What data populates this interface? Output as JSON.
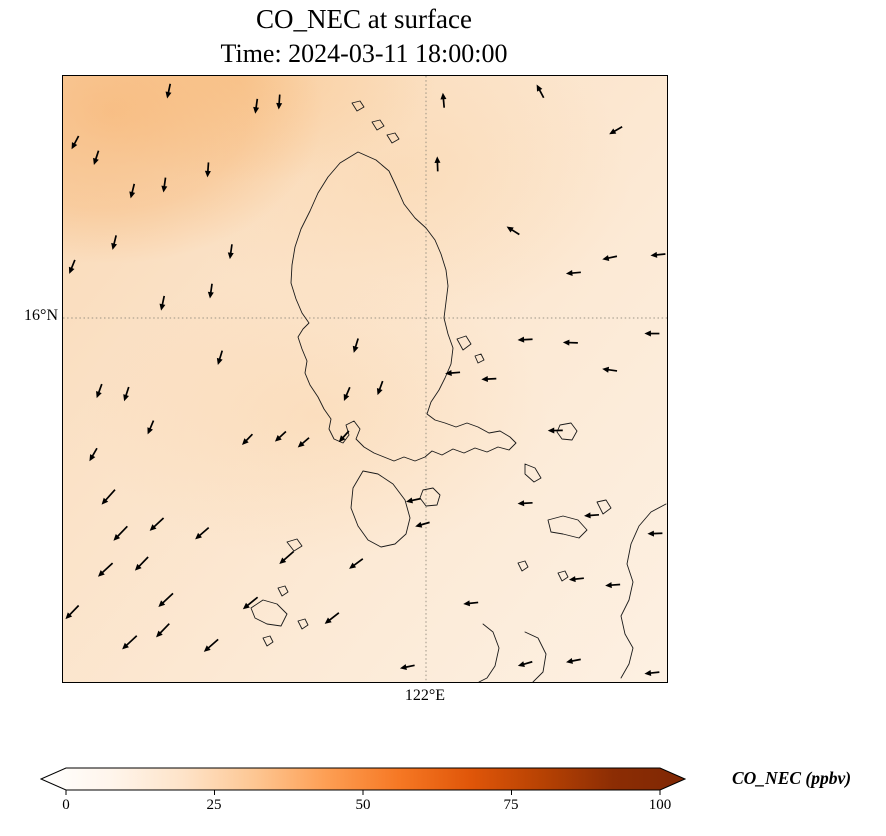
{
  "figure": {
    "title_line1": "CO_NEC at surface",
    "title_line2": "Time: 2024-03-11 18:00:00"
  },
  "map": {
    "lat_tick": "16°N",
    "lon_tick": "122°E"
  },
  "colorbar": {
    "label": "CO_NEC (ppbv)",
    "ticks": [
      "0",
      "25",
      "50",
      "75",
      "100"
    ],
    "gradient": [
      "#ffffff",
      "#fff5eb",
      "#fee3c8",
      "#fdc692",
      "#fd9e53",
      "#f67824",
      "#e05609",
      "#b74203",
      "#8c2d04",
      "#7f2704"
    ]
  },
  "colors": {
    "coastline": "#1a1a1a",
    "gridline": "#8a8578",
    "arrow": "#000000",
    "field_base": "#fbe3cb",
    "field_high_patch": "#f4bb86"
  },
  "chart_data": {
    "type": "heatmap",
    "title": "CO_NEC at surface",
    "subtitle": "Time: 2024-03-11 18:00:00",
    "variable": "CO_NEC",
    "units": "ppbv",
    "level": "surface",
    "time": "2024-03-11 18:00:00",
    "region": "Luzon, Philippines and surrounding seas",
    "colormap": "Oranges",
    "colorbar_range": [
      0,
      100
    ],
    "colorbar_ticks": [
      0,
      25,
      50,
      75,
      100
    ],
    "colorbar_extend": "both",
    "grid_lat_labels": [
      "16°N"
    ],
    "grid_lon_labels": [
      "122°E"
    ],
    "gridline_positions_pct": {
      "lon_x": 60.1,
      "lat_y": 39.9
    },
    "approx_field_range_ppbv": [
      5,
      25
    ],
    "field_note": "pale orange field overall, slightly higher CO in northwest corner, lightest toward southeast",
    "wind_vector_format": "[x_pct, y_pct, angle_deg_ccw_from_east, optional_length_px]",
    "wind_vectors": [
      [
        17.5,
        2.5,
        258
      ],
      [
        32,
        5,
        262
      ],
      [
        35.8,
        4.3,
        266
      ],
      [
        2,
        11,
        242
      ],
      [
        5.5,
        13.5,
        252
      ],
      [
        11.5,
        19,
        256
      ],
      [
        16.8,
        18,
        262
      ],
      [
        24,
        15.5,
        266
      ],
      [
        8.5,
        27.5,
        256
      ],
      [
        1.5,
        31.5,
        248
      ],
      [
        27.8,
        29,
        262
      ],
      [
        16.5,
        37.5,
        258
      ],
      [
        24.5,
        35.5,
        262
      ],
      [
        6,
        52,
        250
      ],
      [
        10.5,
        52.5,
        252
      ],
      [
        14.5,
        58,
        247
      ],
      [
        5,
        62.5,
        240
      ],
      [
        26,
        46.5,
        253
      ],
      [
        63,
        4,
        95
      ],
      [
        79,
        2.5,
        118
      ],
      [
        91.5,
        9,
        210
      ],
      [
        62,
        14.5,
        92
      ],
      [
        74.5,
        25.5,
        148
      ],
      [
        84.5,
        32.5,
        185
      ],
      [
        90.5,
        30,
        192
      ],
      [
        98.5,
        29.5,
        186
      ],
      [
        76.5,
        43.5,
        183
      ],
      [
        84,
        44,
        178
      ],
      [
        90.5,
        48.5,
        172
      ],
      [
        97.5,
        42.5,
        180
      ],
      [
        64.5,
        49,
        185
      ],
      [
        70.5,
        50,
        183
      ],
      [
        30.5,
        60,
        226
      ],
      [
        36,
        59.5,
        223
      ],
      [
        39.8,
        60.5,
        221
      ],
      [
        47,
        52.5,
        247
      ],
      [
        46.5,
        59.5,
        228
      ],
      [
        48.5,
        44.5,
        253
      ],
      [
        52.5,
        51.5,
        250
      ],
      [
        7.5,
        69.5,
        228,
        20
      ],
      [
        9.5,
        75.5,
        226,
        20
      ],
      [
        15.5,
        74,
        223,
        19
      ],
      [
        23,
        75.5,
        221,
        18
      ],
      [
        7,
        81.5,
        223,
        20
      ],
      [
        13,
        80.5,
        226,
        19
      ],
      [
        17,
        86.5,
        223,
        20
      ],
      [
        1.5,
        88.5,
        226,
        19
      ],
      [
        11,
        93.5,
        223,
        20
      ],
      [
        16.5,
        91.5,
        226,
        19
      ],
      [
        24.5,
        94,
        221,
        19
      ],
      [
        31,
        87,
        219,
        19
      ],
      [
        37,
        79.5,
        221,
        19
      ],
      [
        44.5,
        89.5,
        218,
        18
      ],
      [
        48.5,
        80.5,
        216,
        17
      ],
      [
        58,
        70,
        192
      ],
      [
        59.5,
        74,
        196
      ],
      [
        67.5,
        87,
        186
      ],
      [
        57,
        97.5,
        192
      ],
      [
        76.5,
        70.5,
        183
      ],
      [
        81.5,
        58.5,
        181
      ],
      [
        87.5,
        72.5,
        184
      ],
      [
        98,
        75.5,
        182
      ],
      [
        85,
        83,
        186
      ],
      [
        91,
        84,
        184
      ],
      [
        76.5,
        97,
        196
      ],
      [
        84.5,
        96.5,
        191
      ],
      [
        97.5,
        98.5,
        186
      ]
    ]
  }
}
